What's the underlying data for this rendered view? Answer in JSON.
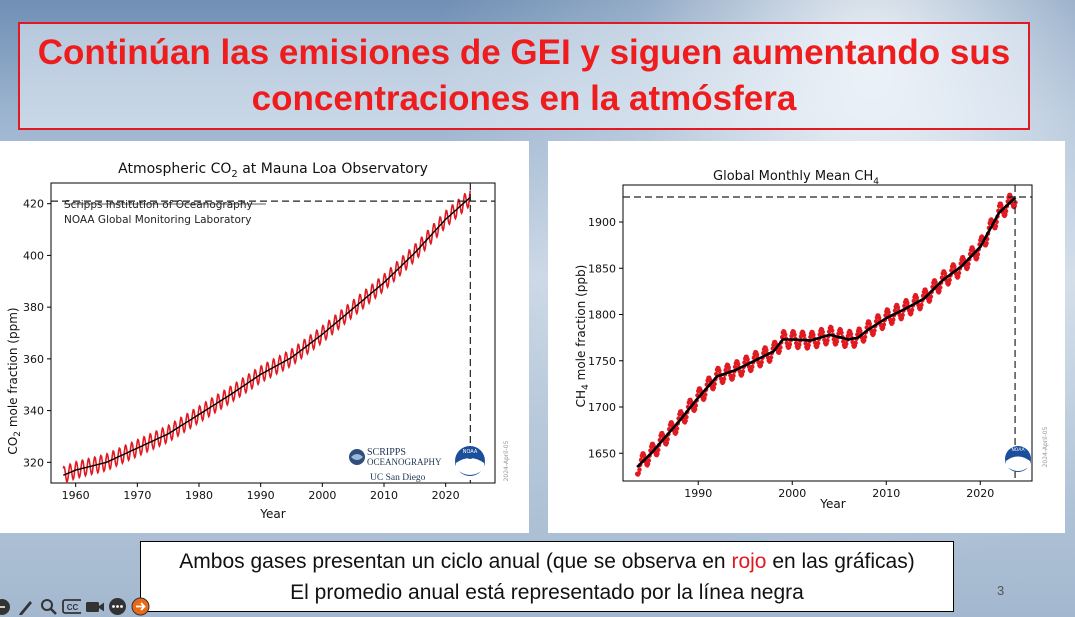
{
  "slide": {
    "title_line1": "Continúan las emisiones de GEI y siguen aumentando sus",
    "title_line2": "concentraciones en la atmósfera",
    "page_number": "3",
    "caption_line1_a": "Ambos gases presentan un ciclo anual (que se observa en ",
    "caption_line1_red": "rojo",
    "caption_line1_b": " en las gráficas)",
    "caption_line2": "El promedio anual está representado por la línea negra"
  },
  "colors": {
    "title": "#ee1c1c",
    "seasonal": "#e11a22",
    "annual": "#000000"
  },
  "co2_chart": {
    "title_pre": "Atmospheric CO",
    "title_sub": "2",
    "title_post": " at Mauna Loa Observatory",
    "ylabel_pre": "CO",
    "ylabel_sub": "2",
    "ylabel_post": " mole fraction (ppm)",
    "xlabel": "Year",
    "credit_line1": "Scripps Institution of Oceanography",
    "credit_line2": "NOAA Global Monitoring Laboratory",
    "logo_scripps_1": "SCRIPPS",
    "logo_scripps_2": "OCEANOGRAPHY",
    "logo_ucsd": "UC San Diego",
    "date_stamp": "2024-April-05",
    "noaa_badge": "NOAA"
  },
  "ch4_chart": {
    "title_pre": "Global Monthly Mean CH",
    "title_sub": "4",
    "ylabel_pre": "CH",
    "ylabel_sub": "4",
    "ylabel_post": " mole fraction (ppb)",
    "xlabel": "Year",
    "date_stamp": "2024-April-05",
    "noaa_badge": "NOAA"
  },
  "chart_data": [
    {
      "type": "line",
      "title": "Atmospheric CO2 at Mauna Loa Observatory",
      "xlabel": "Year",
      "ylabel": "CO2 mole fraction (ppm)",
      "xlim": [
        1956,
        2028
      ],
      "ylim": [
        312,
        428
      ],
      "xticks": [
        1960,
        1970,
        1980,
        1990,
        2000,
        2010,
        2020
      ],
      "yticks": [
        320,
        340,
        360,
        380,
        400,
        420
      ],
      "reference_lines": {
        "x": 2024,
        "y": 421
      },
      "series": [
        {
          "name": "monthly",
          "color": "#e11a22",
          "seasonal_amplitude": 3.2,
          "x": [
            1958,
            1960,
            1965,
            1970,
            1975,
            1980,
            1985,
            1990,
            1995,
            2000,
            2005,
            2010,
            2015,
            2020,
            2024
          ],
          "y": [
            315,
            317,
            320,
            325.5,
            331,
            338.5,
            346,
            354,
            360.5,
            369.5,
            379.5,
            389.5,
            401,
            414,
            422.5
          ]
        },
        {
          "name": "annual mean",
          "color": "#000000",
          "x": [
            1958,
            1960,
            1965,
            1970,
            1975,
            1980,
            1985,
            1990,
            1995,
            2000,
            2005,
            2010,
            2015,
            2020,
            2024
          ],
          "y": [
            315,
            317,
            320,
            325.5,
            331,
            338.5,
            346,
            354,
            360.5,
            369.5,
            379.5,
            389.5,
            401,
            414,
            422.5
          ]
        }
      ]
    },
    {
      "type": "line",
      "title": "Global Monthly Mean CH4",
      "xlabel": "Year",
      "ylabel": "CH4 mole fraction (ppb)",
      "xlim": [
        1982,
        2025.5
      ],
      "ylim": [
        1620,
        1940
      ],
      "xticks": [
        1990,
        2000,
        2010,
        2020
      ],
      "yticks": [
        1650,
        1700,
        1750,
        1800,
        1850,
        1900
      ],
      "reference_lines": {
        "x": 2023.7,
        "y": 1927
      },
      "series": [
        {
          "name": "monthly",
          "color": "#e11a22",
          "seasonal_amplitude": 9,
          "x": [
            1983.5,
            1985,
            1988,
            1990,
            1992,
            1994,
            1996,
            1998,
            1999,
            2000,
            2002,
            2004,
            2006,
            2007,
            2008,
            2010,
            2012,
            2014,
            2016,
            2018,
            2020,
            2022,
            2023.8
          ],
          "y": [
            1635,
            1650,
            1685,
            1710,
            1733,
            1740,
            1750,
            1760,
            1773,
            1773,
            1772,
            1778,
            1773,
            1775,
            1783,
            1796,
            1806,
            1817,
            1837,
            1852,
            1873,
            1910,
            1927
          ]
        },
        {
          "name": "annual mean",
          "color": "#000000",
          "x": [
            1983.5,
            1985,
            1988,
            1990,
            1992,
            1994,
            1996,
            1998,
            1999,
            2000,
            2002,
            2004,
            2006,
            2007,
            2008,
            2010,
            2012,
            2014,
            2016,
            2018,
            2020,
            2022,
            2023.8
          ],
          "y": [
            1635,
            1650,
            1685,
            1710,
            1733,
            1740,
            1750,
            1760,
            1773,
            1773,
            1772,
            1778,
            1773,
            1775,
            1783,
            1796,
            1806,
            1817,
            1837,
            1852,
            1873,
            1910,
            1927
          ]
        }
      ]
    }
  ],
  "toolbar": {
    "icons": [
      "navigate-icon",
      "pen-icon",
      "zoom-icon",
      "subtitles-icon",
      "camera-icon",
      "more-icon",
      "next-icon"
    ],
    "cc_label": "CC"
  }
}
